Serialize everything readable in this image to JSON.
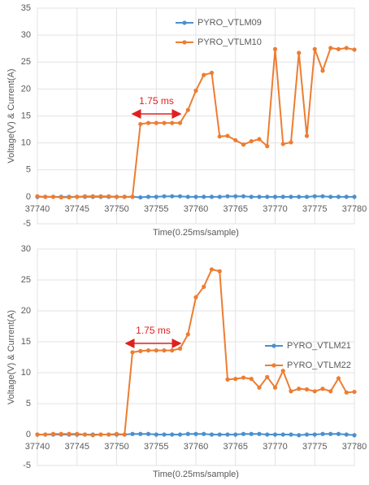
{
  "chart_data": [
    {
      "type": "line",
      "x": [
        37740,
        37741,
        37742,
        37743,
        37744,
        37745,
        37746,
        37747,
        37748,
        37749,
        37750,
        37751,
        37752,
        37753,
        37754,
        37755,
        37756,
        37757,
        37758,
        37759,
        37760,
        37761,
        37762,
        37763,
        37764,
        37765,
        37766,
        37767,
        37768,
        37769,
        37770,
        37771,
        37772,
        37773,
        37774,
        37775,
        37776,
        37777,
        37778,
        37779,
        37780
      ],
      "series": [
        {
          "name": "PYRO_VTLM09",
          "color": "#4a90d0",
          "values": [
            0,
            0,
            0,
            0,
            0,
            0,
            0,
            0,
            0,
            0,
            0,
            0,
            0,
            -0.1,
            0,
            0,
            0.1,
            0.1,
            0.1,
            0,
            0,
            0,
            0,
            0,
            0.1,
            0.1,
            0.1,
            0,
            0,
            0,
            0,
            0,
            0,
            0,
            0,
            0.1,
            0.1,
            0,
            0,
            0,
            0
          ]
        },
        {
          "name": "PYRO_VTLM10",
          "color": "#ed7d31",
          "values": [
            0.1,
            0,
            0,
            -0.1,
            -0.1,
            0,
            0.1,
            0.1,
            0.1,
            0.1,
            0,
            0,
            0,
            13.5,
            13.7,
            13.7,
            13.7,
            13.7,
            13.7,
            16.1,
            19.7,
            22.6,
            23.0,
            11.2,
            11.3,
            10.5,
            9.7,
            10.3,
            10.7,
            9.4,
            27.4,
            9.8,
            10.1,
            26.7,
            11.3,
            27.4,
            23.4,
            27.6,
            27.4,
            27.6,
            27.3
          ]
        }
      ],
      "xlim": [
        37740,
        37780
      ],
      "xticks": [
        37740,
        37745,
        37750,
        37755,
        37760,
        37765,
        37770,
        37775,
        37780
      ],
      "ylim": [
        -5,
        35
      ],
      "yticks": [
        -5,
        0,
        5,
        10,
        15,
        20,
        25,
        30,
        35
      ],
      "xlabel": "Time(0.25ms/sample)",
      "ylabel": "Voltage(V)  & Current(A)",
      "annotation": "1.75 ms",
      "grid": true,
      "legend": "upper center"
    },
    {
      "type": "line",
      "x": [
        37740,
        37741,
        37742,
        37743,
        37744,
        37745,
        37746,
        37747,
        37748,
        37749,
        37750,
        37751,
        37752,
        37753,
        37754,
        37755,
        37756,
        37757,
        37758,
        37759,
        37760,
        37761,
        37762,
        37763,
        37764,
        37765,
        37766,
        37767,
        37768,
        37769,
        37770,
        37771,
        37772,
        37773,
        37774,
        37775,
        37776,
        37777,
        37778,
        37779,
        37780
      ],
      "series": [
        {
          "name": "PYRO_VTLM21",
          "color": "#4a90d0",
          "values": [
            0,
            0,
            0,
            0,
            0,
            0,
            0,
            0,
            0,
            0,
            0,
            0,
            0.1,
            0.1,
            0.1,
            0,
            0,
            0,
            0,
            0.1,
            0.1,
            0.1,
            0,
            0,
            0,
            0,
            0.1,
            0.1,
            0.1,
            0,
            0,
            0,
            0,
            -0.1,
            0,
            0,
            0.1,
            0.1,
            0.1,
            0,
            -0.1
          ]
        },
        {
          "name": "PYRO_VTLM22",
          "color": "#ed7d31",
          "values": [
            0,
            0,
            0.1,
            0.1,
            0.1,
            0.1,
            0,
            -0.1,
            0,
            0,
            0.1,
            0,
            13.3,
            13.5,
            13.6,
            13.6,
            13.6,
            13.6,
            13.9,
            16.2,
            22.2,
            23.9,
            26.7,
            26.4,
            8.9,
            9.0,
            9.2,
            9.0,
            7.6,
            9.3,
            7.6,
            10.3,
            7.0,
            7.4,
            7.3,
            7.0,
            7.4,
            7.0,
            9.1,
            6.8,
            6.9
          ]
        }
      ],
      "xlim": [
        37740,
        37780
      ],
      "xticks": [
        37740,
        37745,
        37750,
        37755,
        37760,
        37765,
        37770,
        37775,
        37780
      ],
      "ylim": [
        -5,
        30
      ],
      "yticks": [
        -5,
        0,
        5,
        10,
        15,
        20,
        25,
        30
      ],
      "xlabel": "Time(0.25ms/sample)",
      "ylabel": "Voltage(V)  & Current(A)",
      "annotation": "1.75 ms",
      "grid": true,
      "legend": "center right"
    }
  ]
}
